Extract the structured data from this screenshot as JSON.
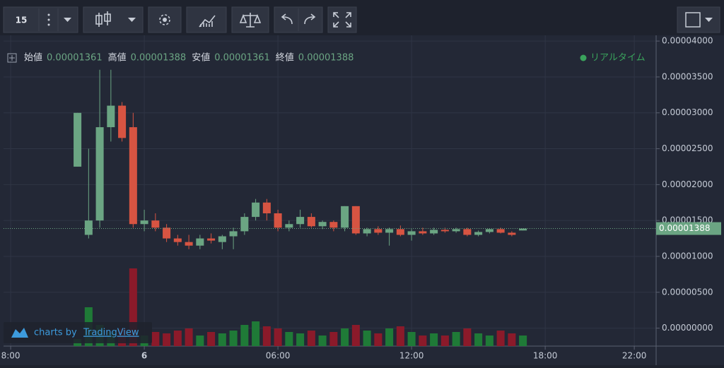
{
  "chart_data": {
    "type": "candlestick",
    "interval": "15",
    "ohlc_legend": [
      {
        "name": "始値",
        "value": 1.361e-05,
        "label": "0.00001361"
      },
      {
        "name": "高値",
        "value": 1.388e-05,
        "label": "0.00001388"
      },
      {
        "name": "安値",
        "value": 1.361e-05,
        "label": "0.00001361"
      },
      {
        "name": "終値",
        "value": 1.388e-05,
        "label": "0.00001388"
      }
    ],
    "realtime": "リアルタイム",
    "last_price": {
      "value": 1.388e-05,
      "label": "0.00001388"
    },
    "watermark": {
      "prefix": "charts by",
      "brand": "TradingView"
    },
    "up_color": "#6ba583",
    "down_color": "#d75442",
    "x": [
      -3,
      -2.5,
      -2,
      -1.5,
      -1,
      -0.5,
      0,
      0.5,
      1,
      1.5,
      2,
      2.5,
      3,
      3.5,
      4,
      4.5,
      5,
      5.5,
      6,
      6.5,
      7,
      7.5,
      8,
      8.5,
      9,
      9.5,
      10,
      10.5,
      11,
      11.5,
      12,
      12.5,
      13,
      13.5,
      14,
      14.5,
      15,
      15.5,
      16,
      16.5,
      17
    ],
    "open": [
      2.25e-05,
      1.3e-05,
      1.5e-05,
      2.8e-05,
      3.1e-05,
      2.8e-05,
      1.45e-05,
      1.5e-05,
      1.4e-05,
      1.25e-05,
      1.2e-05,
      1.15e-05,
      1.25e-05,
      1.2e-05,
      1.28e-05,
      1.35e-05,
      1.55e-05,
      1.75e-05,
      1.6e-05,
      1.4e-05,
      1.45e-05,
      1.55e-05,
      1.42e-05,
      1.48e-05,
      1.4e-05,
      1.7e-05,
      1.32e-05,
      1.38e-05,
      1.33e-05,
      1.38e-05,
      1.3e-05,
      1.35e-05,
      1.32e-05,
      1.37e-05,
      1.35e-05,
      1.38e-05,
      1.3e-05,
      1.34e-05,
      1.38e-05,
      1.33e-05,
      1.361e-05
    ],
    "high": [
      3e-05,
      2.5e-05,
      3.6e-05,
      3.6e-05,
      3.15e-05,
      3e-05,
      1.65e-05,
      1.6e-05,
      1.45e-05,
      1.3e-05,
      1.3e-05,
      1.3e-05,
      1.32e-05,
      1.3e-05,
      1.4e-05,
      1.6e-05,
      1.8e-05,
      1.8e-05,
      1.65e-05,
      1.5e-05,
      1.65e-05,
      1.6e-05,
      1.5e-05,
      1.5e-05,
      1.7e-05,
      1.7e-05,
      1.4e-05,
      1.42e-05,
      1.4e-05,
      1.43e-05,
      1.38e-05,
      1.4e-05,
      1.4e-05,
      1.4e-05,
      1.4e-05,
      1.4e-05,
      1.36e-05,
      1.39e-05,
      1.4e-05,
      1.35e-05,
      1.388e-05
    ],
    "low": [
      2.25e-05,
      1.25e-05,
      1.4e-05,
      2.6e-05,
      2.6e-05,
      1.4e-05,
      1.35e-05,
      1.35e-05,
      1.2e-05,
      1.15e-05,
      1.1e-05,
      1.1e-05,
      1.18e-05,
      1.1e-05,
      1.1e-05,
      1.3e-05,
      1.5e-05,
      1.5e-05,
      1.35e-05,
      1.35e-05,
      1.4e-05,
      1.4e-05,
      1.38e-05,
      1.35e-05,
      1.35e-05,
      1.3e-05,
      1.28e-05,
      1.3e-05,
      1.15e-05,
      1.28e-05,
      1.22e-05,
      1.3e-05,
      1.3e-05,
      1.33e-05,
      1.33e-05,
      1.28e-05,
      1.28e-05,
      1.32e-05,
      1.32e-05,
      1.28e-05,
      1.361e-05
    ],
    "close": [
      3e-05,
      1.5e-05,
      2.8e-05,
      3.1e-05,
      2.65e-05,
      1.45e-05,
      1.5e-05,
      1.4e-05,
      1.25e-05,
      1.2e-05,
      1.15e-05,
      1.25e-05,
      1.22e-05,
      1.28e-05,
      1.35e-05,
      1.55e-05,
      1.75e-05,
      1.6e-05,
      1.4e-05,
      1.45e-05,
      1.55e-05,
      1.42e-05,
      1.48e-05,
      1.4e-05,
      1.7e-05,
      1.32e-05,
      1.38e-05,
      1.33e-05,
      1.38e-05,
      1.3e-05,
      1.35e-05,
      1.32e-05,
      1.37e-05,
      1.35e-05,
      1.38e-05,
      1.3e-05,
      1.34e-05,
      1.38e-05,
      1.33e-05,
      1.3e-05,
      1.388e-05
    ],
    "volume": [
      10,
      55,
      30,
      20,
      25,
      110,
      15,
      20,
      18,
      22,
      25,
      15,
      20,
      18,
      22,
      30,
      35,
      28,
      25,
      20,
      18,
      22,
      15,
      20,
      25,
      30,
      22,
      18,
      25,
      28,
      20,
      15,
      18,
      15,
      20,
      25,
      18,
      15,
      22,
      18,
      15
    ],
    "xlim": [
      -6.32,
      22.98
    ],
    "xticks": [
      {
        "value": -6,
        "label": "8:00"
      },
      {
        "value": 0,
        "label": "6"
      },
      {
        "value": 6,
        "label": "06:00"
      },
      {
        "value": 12,
        "label": "12:00"
      },
      {
        "value": 18,
        "label": "18:00"
      },
      {
        "value": 22,
        "label": "22:00"
      }
    ],
    "ylim": [
      -2.5e-06,
      4.08e-05
    ],
    "yticks": [
      {
        "value": 0,
        "label": "0.00000000"
      },
      {
        "value": 5e-06,
        "label": "0.00000500"
      },
      {
        "value": 1e-05,
        "label": "0.00001000"
      },
      {
        "value": 1.5e-05,
        "label": "0.00001500"
      },
      {
        "value": 2e-05,
        "label": "0.00002000"
      },
      {
        "value": 2.5e-05,
        "label": "0.00002500"
      },
      {
        "value": 3e-05,
        "label": "0.00003000"
      },
      {
        "value": 3.5e-05,
        "label": "0.00003500"
      },
      {
        "value": 4e-05,
        "label": "0.00004000"
      }
    ],
    "grid": true
  }
}
